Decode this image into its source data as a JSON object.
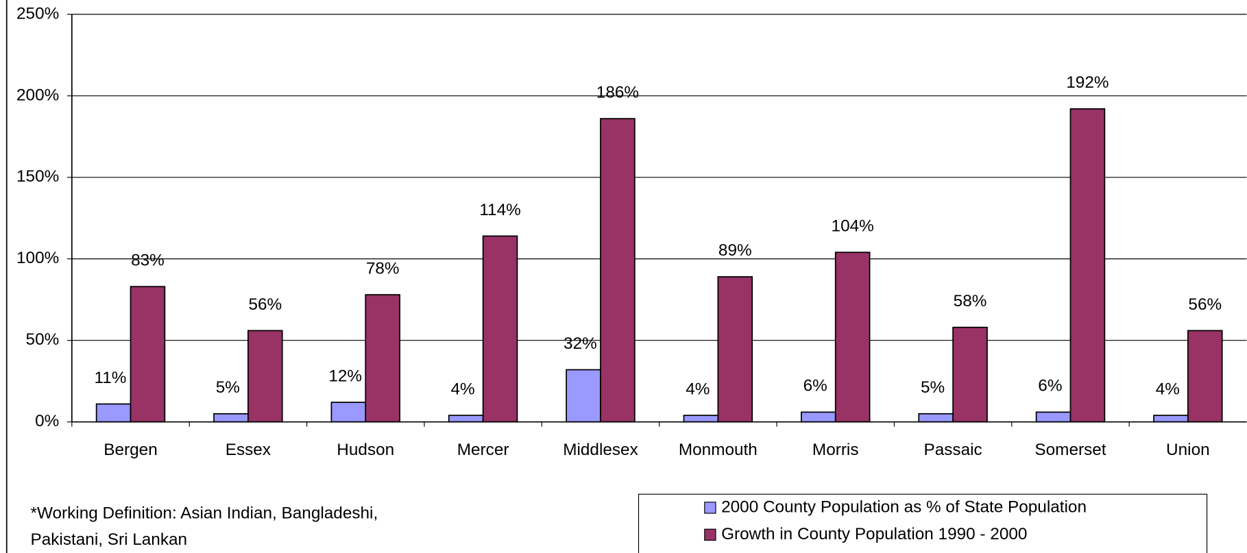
{
  "chart_data": {
    "type": "bar",
    "categories": [
      "Bergen",
      "Essex",
      "Hudson",
      "Mercer",
      "Middlesex",
      "Monmouth",
      "Morris",
      "Passaic",
      "Somerset",
      "Union"
    ],
    "series": [
      {
        "name": "2000 County Population as % of State Population",
        "color": "#9999ff",
        "values": [
          11,
          5,
          12,
          4,
          32,
          4,
          6,
          5,
          6,
          4
        ],
        "value_labels": [
          "11%",
          "5%",
          "12%",
          "4%",
          "32%",
          "4%",
          "6%",
          "5%",
          "6%",
          "4%"
        ]
      },
      {
        "name": "Growth in County Population 1990 - 2000",
        "color": "#993366",
        "values": [
          83,
          56,
          78,
          114,
          186,
          89,
          104,
          58,
          192,
          56
        ],
        "value_labels": [
          "83%",
          "56%",
          "78%",
          "114%",
          "186%",
          "89%",
          "104%",
          "58%",
          "192%",
          "56%"
        ]
      }
    ],
    "ylim": [
      0,
      250
    ],
    "yticks": [
      {
        "value": 0,
        "label": "0%"
      },
      {
        "value": 50,
        "label": "50%"
      },
      {
        "value": 100,
        "label": "100%"
      },
      {
        "value": 150,
        "label": "150%"
      },
      {
        "value": 200,
        "label": "200%"
      },
      {
        "value": 250,
        "label": "250%"
      }
    ],
    "grid": true,
    "legend": "bottom-right",
    "annotations": [
      "*Working Definition:  Asian Indian, Bangladeshi,",
      "Pakistani, Sri Lankan"
    ]
  }
}
